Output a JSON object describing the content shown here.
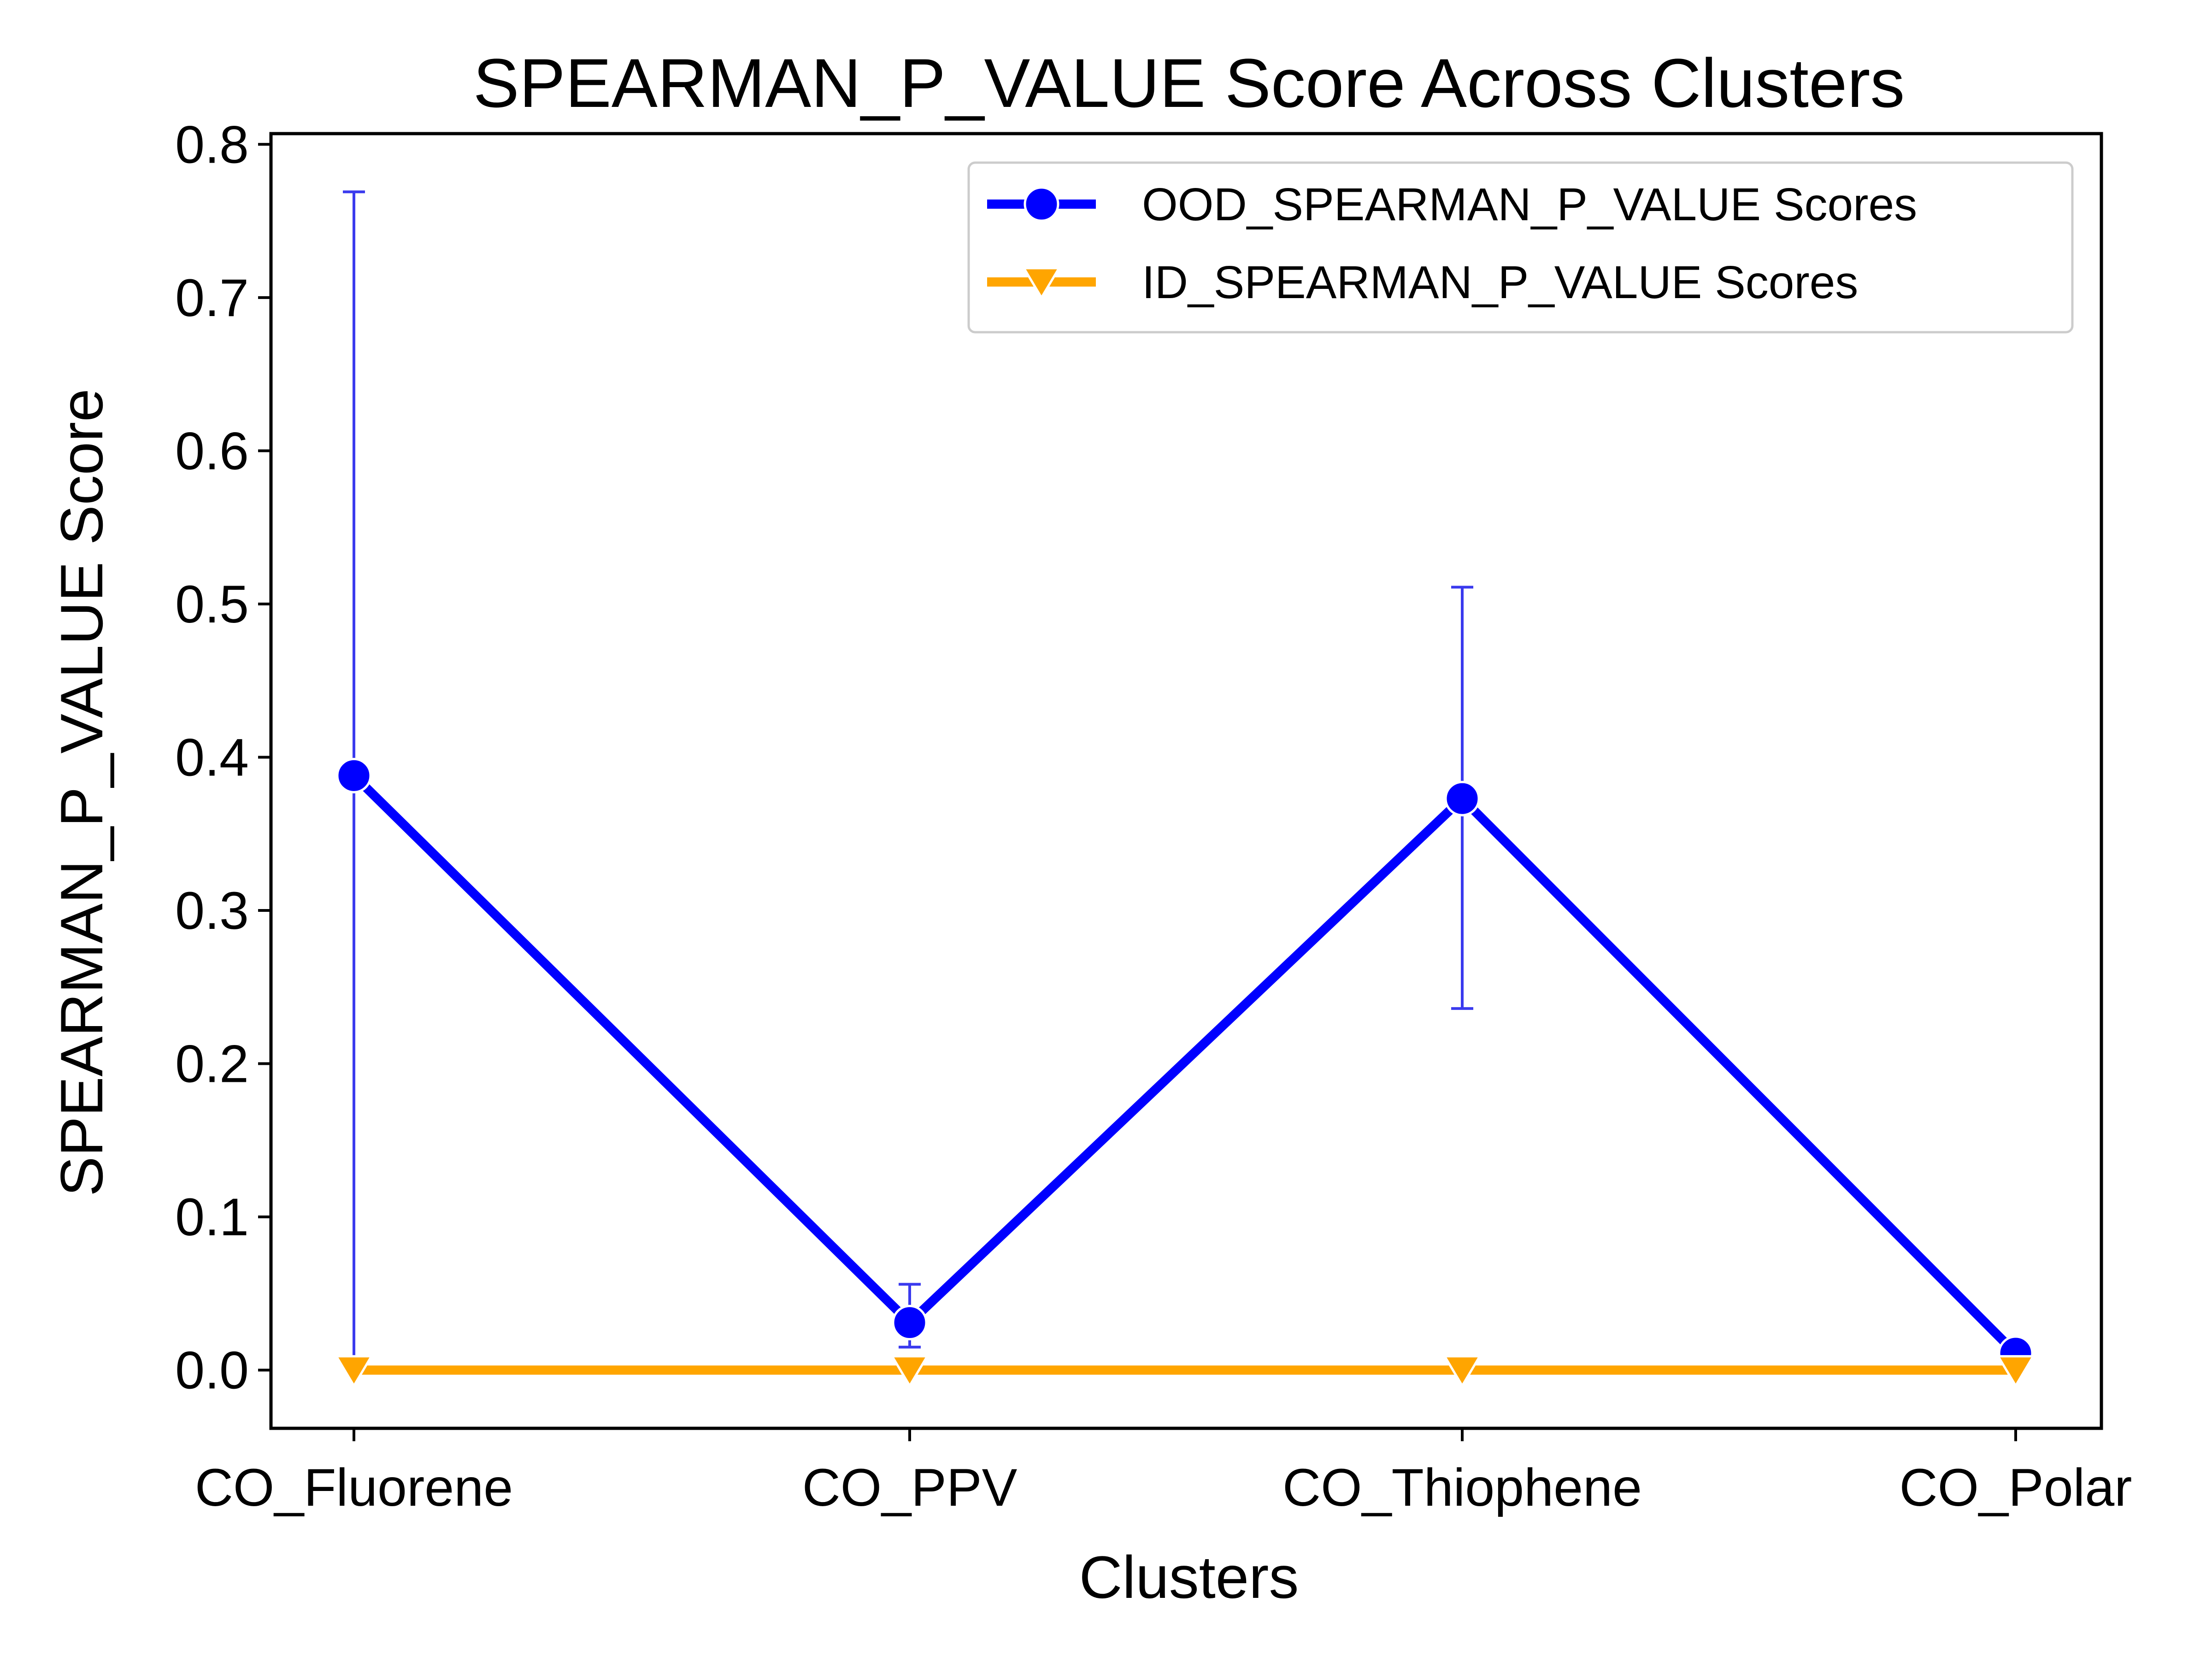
{
  "chart_data": {
    "type": "line",
    "title": "SPEARMAN_P_VALUE Score Across Clusters",
    "xlabel": "Clusters",
    "ylabel": "SPEARMAN_P_VALUE Score",
    "categories": [
      "CO_Fluorene",
      "CO_PPV",
      "CO_Thiophene",
      "CO_Polar"
    ],
    "ylim": [
      -0.038,
      0.807
    ],
    "yticks": [
      0.0,
      0.1,
      0.2,
      0.3,
      0.4,
      0.5,
      0.6,
      0.7,
      0.8
    ],
    "ytick_labels": [
      "0.0",
      "0.1",
      "0.2",
      "0.3",
      "0.4",
      "0.5",
      "0.6",
      "0.7",
      "0.8"
    ],
    "grid": false,
    "legend_position": "upper right",
    "series": [
      {
        "name": "OOD_SPEARMAN_P_VALUE Scores",
        "color": "#0000ff",
        "marker": "circle",
        "values": [
          0.388,
          0.031,
          0.373,
          0.011
        ],
        "error_low": [
          0.004,
          0.015,
          0.236,
          0.011
        ],
        "error_high": [
          0.769,
          0.056,
          0.511,
          0.011
        ]
      },
      {
        "name": "ID_SPEARMAN_P_VALUE Scores",
        "color": "#ffa500",
        "marker": "triangle-down",
        "values": [
          0.0,
          0.0,
          0.0,
          0.0
        ]
      }
    ]
  }
}
